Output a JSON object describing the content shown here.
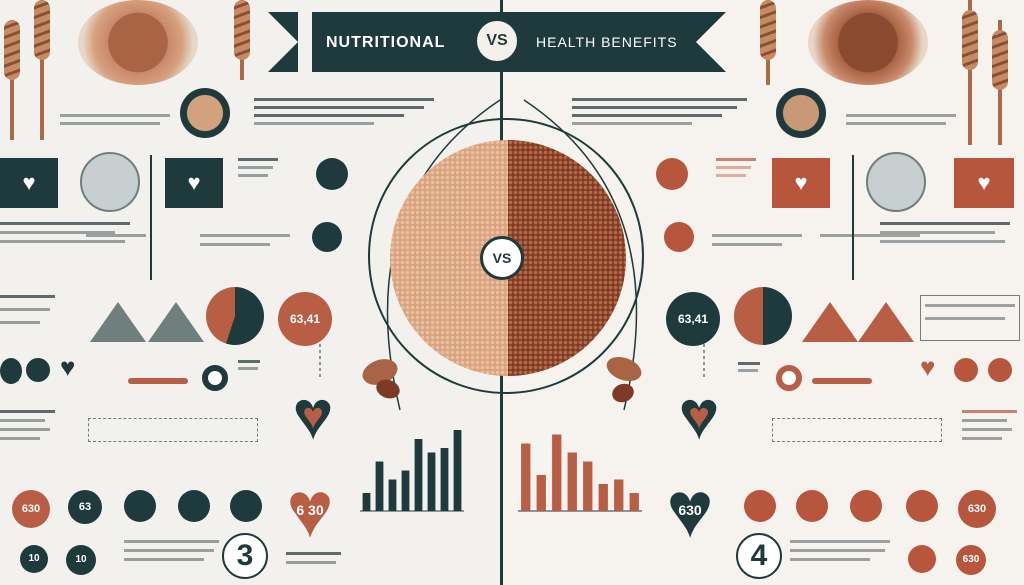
{
  "banner": {
    "left_title": "NUTRITIONAL",
    "vs": "VS",
    "right_title": "HEALTH BENEFITS"
  },
  "center": {
    "vs": "VS"
  },
  "left_panel": {
    "pie_label": "63,41",
    "heart_label": "6 30",
    "big_number": "3",
    "badges": [
      "630",
      "63",
      "10",
      "10"
    ]
  },
  "right_panel": {
    "pie_label": "63,41",
    "heart_label": "630",
    "big_number": "4",
    "badges": [
      "630",
      "630"
    ]
  },
  "colors": {
    "teal": "#1f3a3d",
    "rust": "#b85e45",
    "grain_light": "#d9a37f",
    "grain_dark": "#7e3a24"
  },
  "chart_data": {
    "type": "bar",
    "series": [
      {
        "values": [
          20,
          55,
          35,
          45,
          80,
          65,
          70,
          90
        ]
      },
      {
        "values": [
          75,
          40,
          85,
          65,
          55,
          30,
          35,
          20
        ]
      }
    ]
  }
}
